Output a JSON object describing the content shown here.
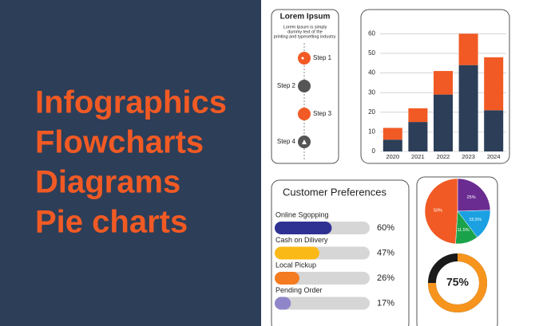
{
  "headline": [
    "Infographics",
    "Flowcharts",
    "Diagrams",
    "Pie charts"
  ],
  "steps": {
    "title": "Lorem Ipsum",
    "text": [
      "Lorem Ipsum is simply",
      "dummy text of the",
      "printing and typesetting industry."
    ],
    "items": [
      "Step 1",
      "Step 2",
      "Step 3",
      "Step 4"
    ]
  },
  "chart_data": [
    {
      "type": "stacked-bar",
      "categories": [
        "2020",
        "2021",
        "2022",
        "2023",
        "2024"
      ],
      "series": [
        {
          "color": "#2c3e58",
          "values": [
            6,
            15,
            29,
            44,
            21
          ]
        },
        {
          "color": "#f15a24",
          "values": [
            6,
            7,
            12,
            16,
            27
          ]
        }
      ],
      "ylim": [
        0,
        65
      ],
      "yticks": [
        0,
        10,
        20,
        30,
        40,
        50,
        60
      ],
      "grid": true
    },
    {
      "type": "progress",
      "title": "Customer Preferences",
      "categories": [
        "Online Sgopping",
        "Cash on Dilivery",
        "Local Pickup",
        "Pending Order"
      ],
      "values": [
        60,
        47,
        26,
        17
      ],
      "value_labels": [
        "60%",
        "47%",
        "26%",
        "17%"
      ],
      "colors": [
        "#2e3192",
        "#fbb917",
        "#f47b20",
        "#8f86c9"
      ],
      "xlim": [
        0,
        100
      ]
    },
    {
      "type": "pie",
      "values": [
        25,
        15.5,
        11.5,
        50
      ],
      "value_labels": [
        "25%",
        "15.5%",
        "11.5%",
        "50%"
      ],
      "colors": [
        "#6a2c91",
        "#1ba1e2",
        "#1aa34a",
        "#f15a24"
      ]
    },
    {
      "type": "donut",
      "values": [
        75
      ],
      "value_labels": [
        "75%"
      ],
      "colors": [
        "#f7941d"
      ]
    }
  ]
}
